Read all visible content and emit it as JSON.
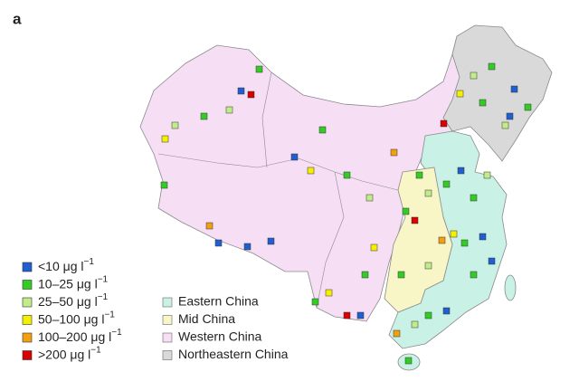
{
  "panel_label": "a",
  "legend": {
    "concentration": [
      {
        "label": "<10 μg l",
        "superscript": "−1",
        "color": "#1f5fd0"
      },
      {
        "label": "10–25 μg l",
        "superscript": "−1",
        "color": "#33cc22"
      },
      {
        "label": "25–50 μg l",
        "superscript": "−1",
        "color": "#c2ec8a"
      },
      {
        "label": "50–100 μg l",
        "superscript": "−1",
        "color": "#f4f000"
      },
      {
        "label": "100–200 μg l",
        "superscript": "−1",
        "color": "#f0a010"
      },
      {
        "label": ">200 μg l",
        "superscript": "−1",
        "color": "#d80000"
      }
    ],
    "regions": [
      {
        "label": "Eastern China",
        "color": "#c9f1e6"
      },
      {
        "label": "Mid China",
        "color": "#f8f5c6"
      },
      {
        "label": "Western China",
        "color": "#f6def5"
      },
      {
        "label": "Northeastern China",
        "color": "#d9d9d9"
      }
    ]
  }
}
